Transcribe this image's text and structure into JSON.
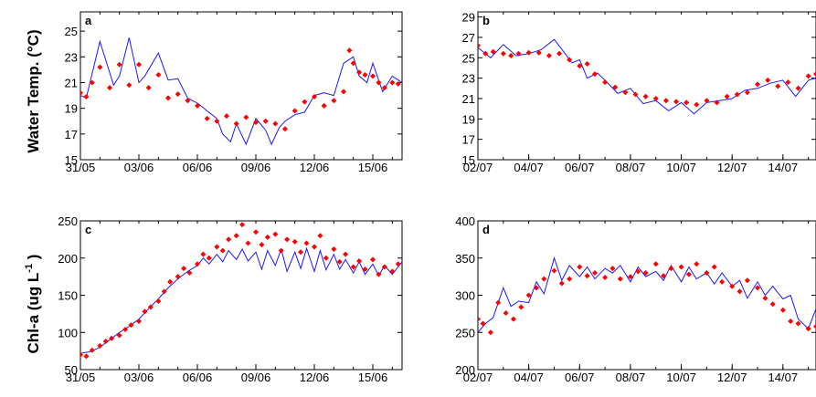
{
  "ylabels": {
    "top": "Water Temp. (°C)",
    "bottom_main": "Chl-a  (ug L",
    "bottom_sup": "-1",
    "bottom_close": " )"
  },
  "chart_data": [
    {
      "type": "line",
      "panel": "a",
      "ylim": [
        15,
        26.5
      ],
      "yticks": [
        15,
        17,
        19,
        21,
        23,
        25
      ],
      "x_days_span": [
        31,
        47.5
      ],
      "xtick_labels": [
        "31/05",
        "03/06",
        "06/06",
        "09/06",
        "12/06",
        "15/06"
      ],
      "xtick_days": [
        31,
        34,
        37,
        40,
        43,
        46
      ],
      "colors": {
        "model": "#1a1aff",
        "observed": "#ff0000"
      },
      "series": [
        {
          "role": "model",
          "x": [
            31,
            31.3,
            32.0,
            32.7,
            33.0,
            33.5,
            34.0,
            34.3,
            35.0,
            35.5,
            36.0,
            36.5,
            37.0,
            37.5,
            38.0,
            38.3,
            38.7,
            39.0,
            39.5,
            40.0,
            40.5,
            40.8,
            41.2,
            41.5,
            42.0,
            42.5,
            43.0,
            43.5,
            44.0,
            44.5,
            45.0,
            45.3,
            45.7,
            46.0,
            46.5,
            47.0,
            47.5
          ],
          "y": [
            20.0,
            19.8,
            24.2,
            20.8,
            21.5,
            24.5,
            21.0,
            21.5,
            23.3,
            21.2,
            21.3,
            19.8,
            19.4,
            18.8,
            18.2,
            17.0,
            16.4,
            17.8,
            16.2,
            18.2,
            17.3,
            16.2,
            17.5,
            18.0,
            18.5,
            18.7,
            20.0,
            20.2,
            20.0,
            22.5,
            23.0,
            21.5,
            21.0,
            22.5,
            20.3,
            21.5,
            21.0
          ]
        },
        {
          "role": "observed",
          "x": [
            31,
            31.3,
            31.6,
            32.0,
            32.5,
            33.0,
            33.5,
            34.0,
            34.5,
            35.0,
            35.5,
            36.0,
            36.5,
            37.0,
            37.5,
            38.0,
            38.5,
            39.0,
            39.5,
            40.0,
            40.5,
            41.0,
            41.5,
            42.0,
            42.5,
            43.0,
            43.5,
            44.0,
            44.5,
            44.8,
            45.0,
            45.3,
            45.6,
            46.0,
            46.3,
            46.6,
            47.0,
            47.3
          ],
          "y": [
            20.2,
            19.9,
            21.0,
            22.2,
            20.6,
            22.4,
            20.8,
            22.4,
            20.6,
            21.6,
            19.8,
            20.1,
            19.6,
            19.2,
            18.2,
            18.0,
            18.4,
            17.8,
            18.3,
            17.9,
            18.0,
            17.8,
            17.4,
            18.8,
            19.5,
            19.9,
            19.2,
            19.6,
            20.3,
            23.5,
            22.5,
            21.8,
            21.6,
            21.5,
            21.0,
            20.6,
            21.0,
            20.9
          ]
        }
      ]
    },
    {
      "type": "line",
      "panel": "b",
      "ylim": [
        15,
        29.5
      ],
      "yticks": [
        15,
        17,
        19,
        21,
        23,
        25,
        27,
        29
      ],
      "x_days_span": [
        2,
        15.3
      ],
      "xtick_labels": [
        "02/07",
        "04/07",
        "06/07",
        "08/07",
        "10/07",
        "12/07",
        "14/07"
      ],
      "xtick_days": [
        2,
        4,
        6,
        8,
        10,
        12,
        14
      ],
      "colors": {
        "model": "#1a1aff",
        "observed": "#ff0000"
      },
      "series": [
        {
          "role": "model",
          "x": [
            2,
            2.5,
            3.0,
            3.5,
            4.0,
            4.5,
            5.0,
            5.4,
            5.7,
            6.0,
            6.3,
            6.7,
            7.0,
            7.5,
            8.0,
            8.5,
            9.0,
            9.5,
            10.0,
            10.5,
            11.0,
            11.5,
            12.0,
            12.5,
            13.0,
            13.5,
            14.0,
            14.5,
            15.0,
            15.3
          ],
          "y": [
            26.0,
            25.0,
            26.3,
            25.2,
            25.4,
            25.8,
            26.8,
            25.5,
            24.5,
            24.8,
            23.0,
            23.5,
            22.8,
            21.5,
            22.0,
            20.5,
            20.8,
            19.8,
            20.6,
            19.5,
            20.6,
            20.8,
            21.0,
            21.8,
            22.0,
            22.5,
            22.8,
            21.2,
            22.8,
            23.0
          ]
        },
        {
          "role": "observed",
          "x": [
            2,
            2.3,
            2.6,
            3.0,
            3.3,
            3.6,
            4.0,
            4.4,
            4.8,
            5.2,
            5.6,
            6.0,
            6.3,
            6.6,
            7.0,
            7.4,
            7.8,
            8.2,
            8.6,
            9.0,
            9.4,
            9.8,
            10.2,
            10.6,
            11.0,
            11.4,
            11.8,
            12.2,
            12.6,
            13.0,
            13.4,
            13.8,
            14.2,
            14.6,
            15.0,
            15.3
          ],
          "y": [
            26.2,
            25.4,
            25.6,
            25.4,
            25.2,
            25.4,
            25.5,
            25.5,
            25.2,
            25.4,
            24.8,
            24.2,
            24.4,
            23.4,
            22.6,
            22.1,
            21.6,
            21.4,
            21.2,
            21.0,
            20.8,
            20.7,
            20.6,
            20.4,
            20.8,
            20.6,
            21.2,
            21.4,
            21.6,
            22.4,
            22.8,
            22.2,
            22.6,
            22.0,
            23.2,
            23.4
          ]
        }
      ]
    },
    {
      "type": "line",
      "panel": "c",
      "ylim": [
        50,
        250
      ],
      "yticks": [
        50,
        100,
        150,
        200,
        250
      ],
      "x_days_span": [
        31,
        47.5
      ],
      "xtick_labels": [
        "31/05",
        "03/06",
        "06/06",
        "09/06",
        "12/06",
        "15/06"
      ],
      "xtick_days": [
        31,
        34,
        37,
        40,
        43,
        46
      ],
      "colors": {
        "model": "#1a1aff",
        "observed": "#ff0000"
      },
      "series": [
        {
          "role": "model",
          "x": [
            31,
            31.5,
            32.0,
            32.5,
            33.0,
            33.5,
            34.0,
            34.5,
            35.0,
            35.5,
            36.0,
            36.5,
            37.0,
            37.3,
            37.6,
            38.0,
            38.3,
            38.6,
            39.0,
            39.3,
            39.6,
            40.0,
            40.3,
            40.6,
            41.0,
            41.3,
            41.6,
            42.0,
            42.3,
            42.6,
            43.0,
            43.3,
            43.6,
            44.0,
            44.3,
            44.6,
            45.0,
            45.3,
            45.6,
            46.0,
            46.3,
            46.6,
            47.0,
            47.5
          ],
          "y": [
            72,
            74,
            80,
            90,
            100,
            108,
            118,
            132,
            145,
            160,
            172,
            182,
            190,
            200,
            192,
            205,
            195,
            210,
            198,
            212,
            196,
            208,
            185,
            210,
            190,
            212,
            182,
            208,
            186,
            213,
            182,
            210,
            184,
            205,
            185,
            198,
            180,
            195,
            178,
            192,
            176,
            190,
            178,
            195
          ]
        },
        {
          "role": "observed",
          "x": [
            31,
            31.3,
            31.6,
            32.0,
            32.3,
            32.6,
            33.0,
            33.3,
            33.6,
            34.0,
            34.3,
            34.6,
            35.0,
            35.3,
            35.6,
            36.0,
            36.3,
            36.6,
            37.0,
            37.3,
            37.6,
            38.0,
            38.3,
            38.6,
            39.0,
            39.3,
            39.6,
            40.0,
            40.3,
            40.6,
            41.0,
            41.3,
            41.6,
            42.0,
            42.3,
            42.6,
            43.0,
            43.3,
            43.6,
            44.0,
            44.3,
            44.6,
            45.0,
            45.3,
            45.6,
            46.0,
            46.3,
            46.6,
            47.0,
            47.3
          ],
          "y": [
            70,
            68,
            76,
            82,
            88,
            92,
            96,
            104,
            110,
            115,
            128,
            134,
            142,
            155,
            168,
            175,
            186,
            180,
            192,
            205,
            200,
            215,
            210,
            225,
            230,
            245,
            220,
            235,
            218,
            228,
            232,
            210,
            225,
            222,
            208,
            220,
            215,
            230,
            200,
            212,
            195,
            205,
            188,
            196,
            185,
            198,
            178,
            188,
            182,
            192
          ]
        }
      ]
    },
    {
      "type": "line",
      "panel": "d",
      "ylim": [
        200,
        400
      ],
      "yticks": [
        200,
        250,
        300,
        350,
        400
      ],
      "x_days_span": [
        2,
        15.3
      ],
      "xtick_labels": [
        "02/07",
        "04/07",
        "06/07",
        "08/07",
        "10/07",
        "12/07",
        "14/07"
      ],
      "xtick_days": [
        2,
        4,
        6,
        8,
        10,
        12,
        14
      ],
      "colors": {
        "model": "#1a1aff",
        "observed": "#ff0000"
      },
      "series": [
        {
          "role": "model",
          "x": [
            2,
            2.3,
            2.6,
            3.0,
            3.3,
            3.6,
            4.0,
            4.3,
            4.6,
            5.0,
            5.3,
            5.6,
            6.0,
            6.3,
            6.6,
            7.0,
            7.3,
            7.6,
            8.0,
            8.3,
            8.6,
            9.0,
            9.3,
            9.6,
            10.0,
            10.3,
            10.6,
            11.0,
            11.3,
            11.6,
            12.0,
            12.3,
            12.6,
            13.0,
            13.3,
            13.6,
            14.0,
            14.3,
            14.6,
            15.0,
            15.3
          ],
          "y": [
            250,
            262,
            270,
            310,
            285,
            292,
            290,
            318,
            302,
            350,
            320,
            340,
            325,
            338,
            322,
            336,
            330,
            340,
            318,
            338,
            325,
            332,
            320,
            340,
            318,
            338,
            322,
            330,
            315,
            330,
            312,
            320,
            296,
            318,
            300,
            312,
            295,
            300,
            268,
            255,
            282
          ]
        },
        {
          "role": "observed",
          "x": [
            2,
            2.2,
            2.5,
            2.8,
            3.1,
            3.4,
            3.7,
            4.0,
            4.3,
            4.6,
            5.0,
            5.3,
            5.6,
            6.0,
            6.3,
            6.6,
            7.0,
            7.3,
            7.6,
            8.0,
            8.3,
            8.6,
            9.0,
            9.3,
            9.6,
            10.0,
            10.3,
            10.6,
            11.0,
            11.3,
            11.6,
            12.0,
            12.3,
            12.6,
            13.0,
            13.3,
            13.6,
            14.0,
            14.3,
            14.6,
            15.0,
            15.3
          ],
          "y": [
            268,
            262,
            250,
            290,
            276,
            268,
            284,
            300,
            310,
            322,
            333,
            316,
            322,
            338,
            326,
            330,
            324,
            336,
            322,
            325,
            332,
            330,
            342,
            326,
            336,
            338,
            328,
            342,
            330,
            338,
            318,
            312,
            305,
            320,
            310,
            296,
            288,
            280,
            265,
            262,
            255,
            258
          ]
        }
      ]
    }
  ]
}
